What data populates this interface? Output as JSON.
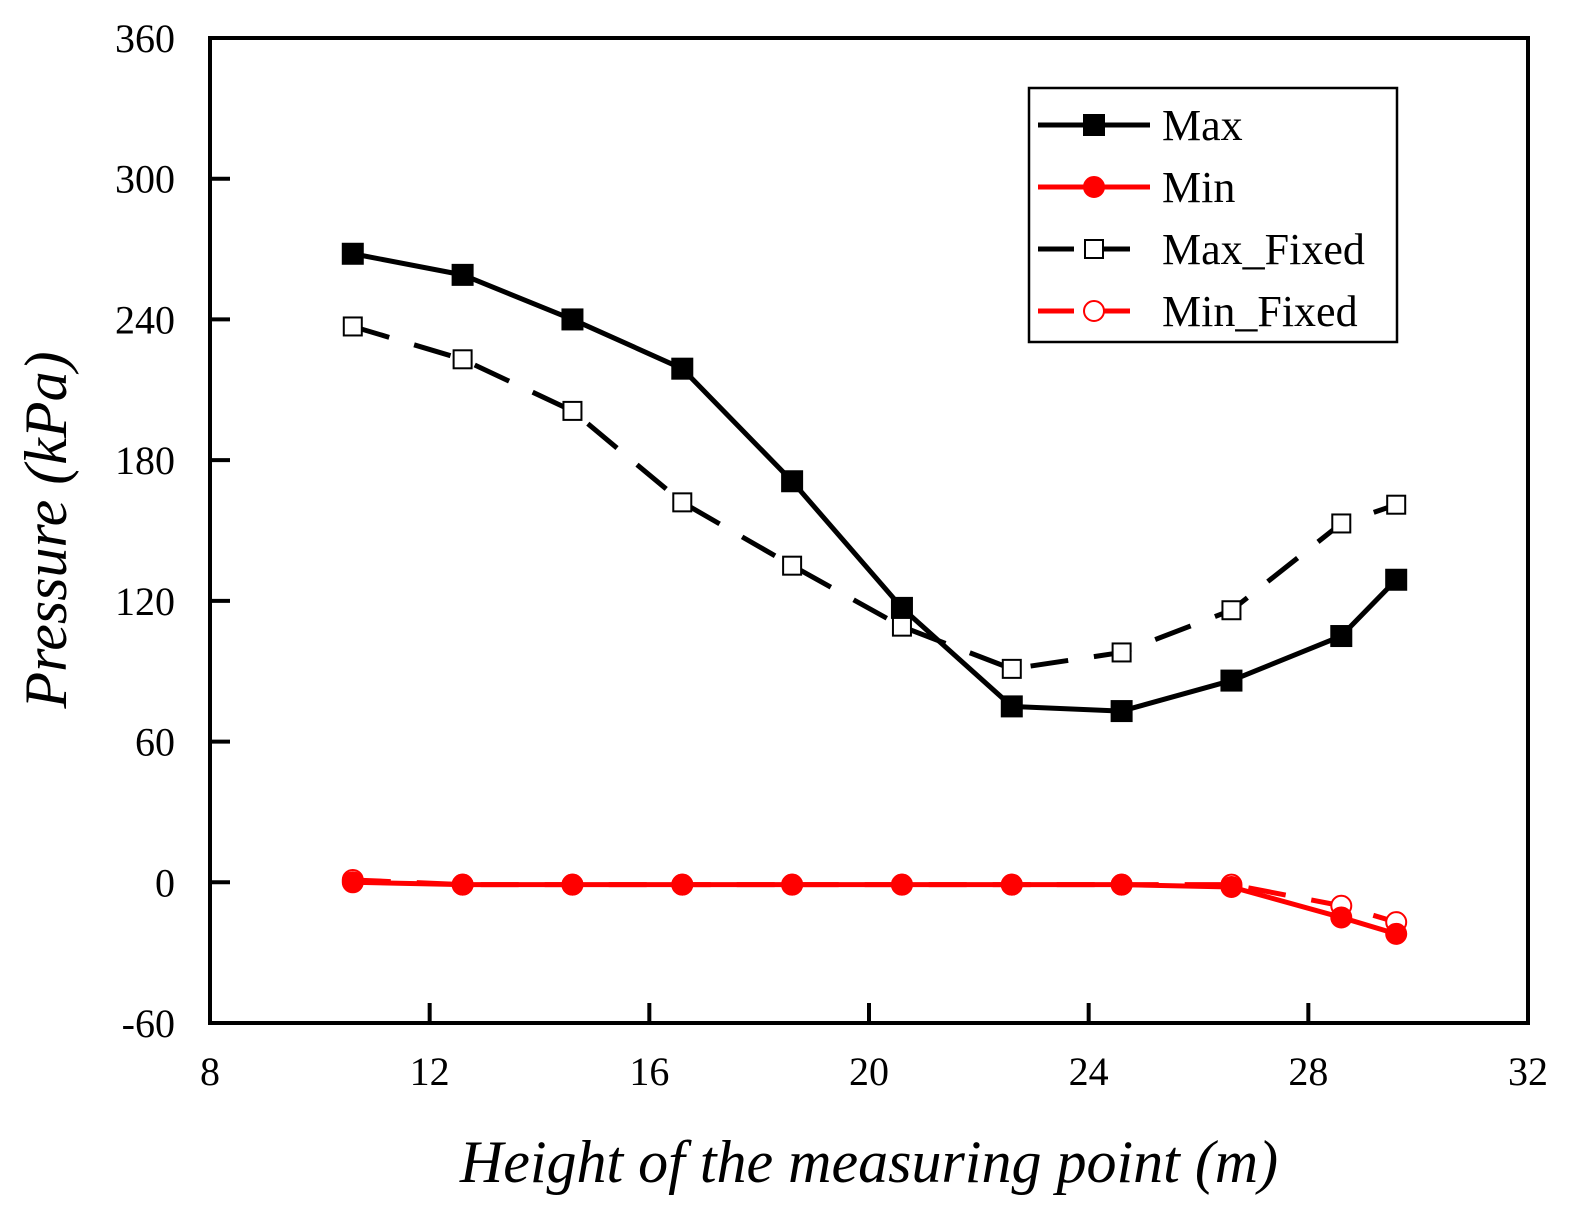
{
  "chart_data": {
    "type": "line",
    "title": "",
    "xlabel": "Height of the measuring point (m)",
    "ylabel": "Pressure (kPa)",
    "xlim": [
      8,
      32
    ],
    "ylim": [
      -60,
      360
    ],
    "xticks": [
      8,
      12,
      16,
      20,
      24,
      28,
      32
    ],
    "yticks": [
      -60,
      0,
      60,
      120,
      180,
      240,
      300,
      360
    ],
    "x_tick_labels": [
      "8",
      "12",
      "16",
      "20",
      "24",
      "28",
      "32"
    ],
    "y_tick_labels": [
      "-60",
      "0",
      "60",
      "120",
      "180",
      "240",
      "300",
      "360"
    ],
    "grid": false,
    "legend_position": "top-right",
    "series": [
      {
        "name": "Max",
        "color": "#000000",
        "line": "solid",
        "marker": "square-filled",
        "x": [
          10.6,
          12.6,
          14.6,
          16.6,
          18.6,
          20.6,
          22.6,
          24.6,
          26.6,
          28.6,
          29.6
        ],
        "values": [
          268,
          259,
          240,
          219,
          171,
          117,
          75,
          73,
          86,
          105,
          129
        ]
      },
      {
        "name": "Min",
        "color": "#ff0000",
        "line": "solid",
        "marker": "circle-filled",
        "x": [
          10.6,
          12.6,
          14.6,
          16.6,
          18.6,
          20.6,
          22.6,
          24.6,
          26.6,
          28.6,
          29.6
        ],
        "values": [
          0,
          -1,
          -1,
          -1,
          -1,
          -1,
          -1,
          -1,
          -2,
          -15,
          -22
        ]
      },
      {
        "name": "Max_Fixed",
        "color": "#000000",
        "line": "dashed",
        "marker": "square-open",
        "x": [
          10.6,
          12.6,
          14.6,
          16.6,
          18.6,
          20.6,
          22.6,
          24.6,
          26.6,
          28.6,
          29.6
        ],
        "values": [
          237,
          223,
          201,
          162,
          135,
          109,
          91,
          98,
          116,
          153,
          161
        ]
      },
      {
        "name": "Min_Fixed",
        "color": "#ff0000",
        "line": "dashed",
        "marker": "circle-open",
        "x": [
          10.6,
          12.6,
          14.6,
          16.6,
          18.6,
          20.6,
          22.6,
          24.6,
          26.6,
          28.6,
          29.6
        ],
        "values": [
          1,
          -1,
          -1,
          -1,
          -1,
          -1,
          -1,
          -1,
          -1,
          -10,
          -17
        ]
      }
    ]
  }
}
